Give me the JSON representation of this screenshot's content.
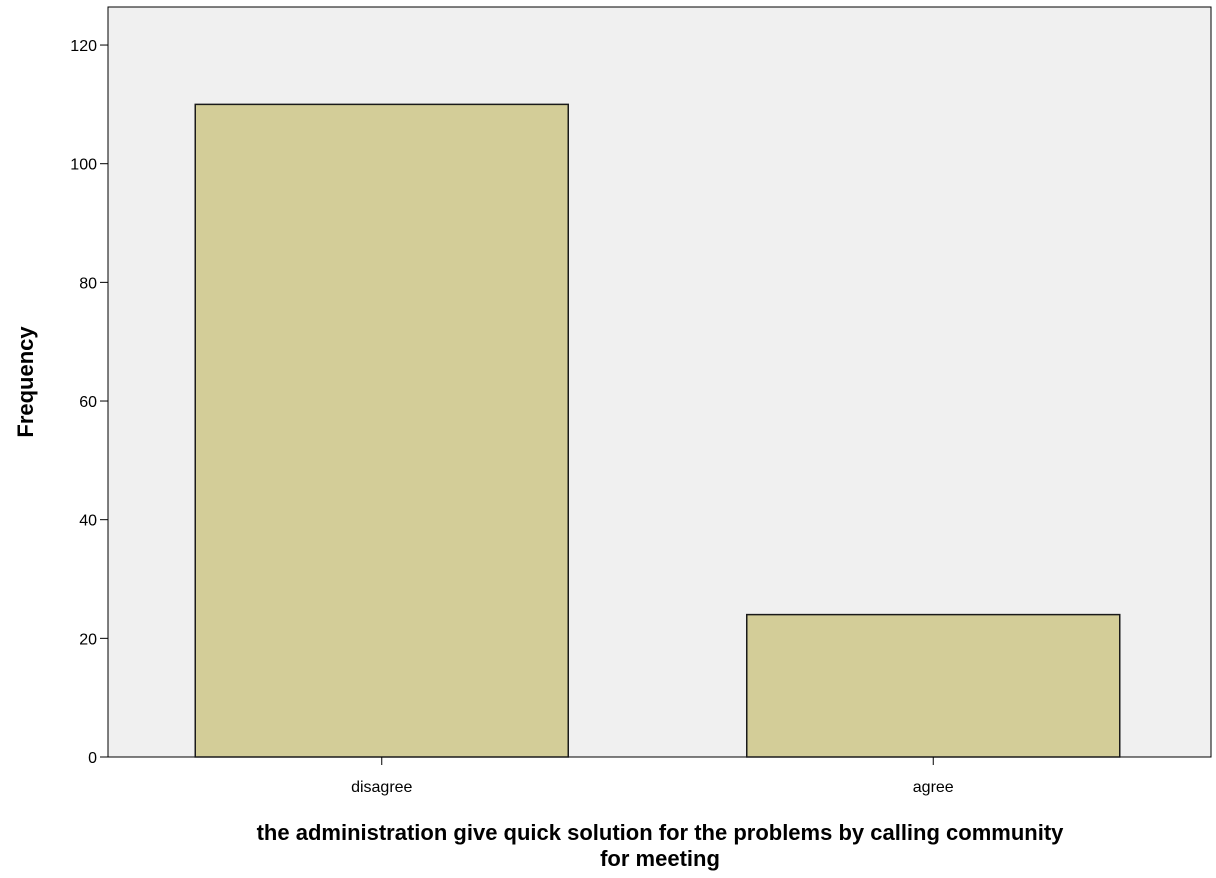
{
  "chart_data": {
    "type": "bar",
    "categories": [
      "disagree",
      "agree"
    ],
    "values": [
      110,
      24
    ],
    "ylabel": "Frequency",
    "xlabel_lines": [
      "the administration give quick solution for the problems by calling community",
      "for meeting"
    ],
    "yticks": [
      0,
      20,
      40,
      60,
      80,
      100,
      120
    ],
    "ylim": [
      0,
      126
    ],
    "grid": false,
    "legend": "none",
    "colors": {
      "plot_background": "#f0f0f0",
      "bar_fill": "#d3cd98",
      "bar_stroke": "#1a1a1a",
      "axis": "#000000"
    }
  }
}
